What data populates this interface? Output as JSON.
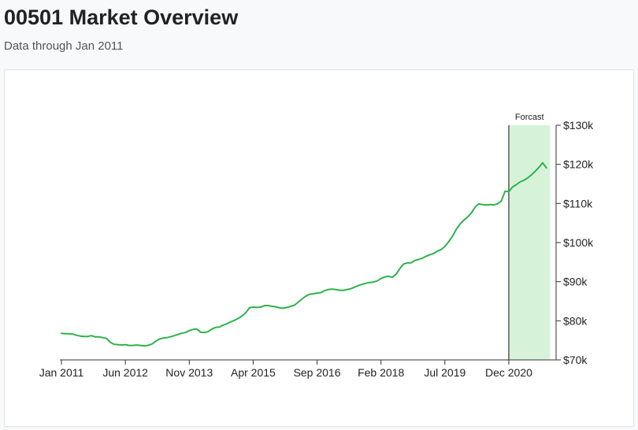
{
  "header": {
    "title": "00501 Market Overview",
    "subtitle": "Data through Jan 2011"
  },
  "colors": {
    "line": "#2db34a",
    "forecast_fill": "#d6f3da",
    "axis": "#333333"
  },
  "chart_data": {
    "type": "line",
    "title": "",
    "xlabel": "",
    "ylabel": "",
    "x_start": "Jan 2011",
    "x_step_months": 1,
    "x_ticks": [
      {
        "label": "Jan 2011",
        "index": 0
      },
      {
        "label": "Jun 2012",
        "index": 17
      },
      {
        "label": "Nov 2013",
        "index": 34
      },
      {
        "label": "Apr 2015",
        "index": 51
      },
      {
        "label": "Sep 2016",
        "index": 68
      },
      {
        "label": "Feb 2018",
        "index": 85
      },
      {
        "label": "Jul 2019",
        "index": 102
      },
      {
        "label": "Dec 2020",
        "index": 119
      }
    ],
    "y_ticks": [
      {
        "label": "$70k",
        "value": 70000
      },
      {
        "label": "$80k",
        "value": 80000
      },
      {
        "label": "$90k",
        "value": 90000
      },
      {
        "label": "$100k",
        "value": 100000
      },
      {
        "label": "$110k",
        "value": 110000
      },
      {
        "label": "$120k",
        "value": 120000
      },
      {
        "label": "$130k",
        "value": 130000
      }
    ],
    "ylim": [
      70000,
      130000
    ],
    "y_axis_side": "right",
    "grid": false,
    "forecast": {
      "label": "Forcast",
      "start_index": 119,
      "end_index": 130
    },
    "series": [
      {
        "values": [
          76800,
          76700,
          76700,
          76600,
          76300,
          76100,
          76000,
          76000,
          76200,
          75900,
          75900,
          75700,
          75500,
          74500,
          74000,
          73900,
          73800,
          73900,
          73700,
          73700,
          73800,
          73700,
          73600,
          73700,
          74000,
          74700,
          75300,
          75600,
          75700,
          75900,
          76200,
          76500,
          76800,
          77000,
          77500,
          77800,
          77900,
          77100,
          77000,
          77200,
          77900,
          78300,
          78400,
          78900,
          79200,
          79700,
          80100,
          80600,
          81200,
          82000,
          83300,
          83500,
          83400,
          83500,
          83900,
          83900,
          83700,
          83600,
          83300,
          83200,
          83400,
          83700,
          84000,
          84800,
          85600,
          86300,
          86800,
          86900,
          87100,
          87200,
          87700,
          88000,
          88100,
          88000,
          87800,
          87800,
          88000,
          88200,
          88600,
          89000,
          89300,
          89600,
          89800,
          89900,
          90200,
          90800,
          91200,
          91400,
          91100,
          91900,
          93300,
          94500,
          94800,
          94800,
          95400,
          95700,
          96000,
          96500,
          96900,
          97200,
          97800,
          98200,
          99000,
          100200,
          101600,
          103300,
          104700,
          105700,
          106500,
          107500,
          109000,
          109900,
          109700,
          109600,
          109700,
          109600,
          109900,
          110600,
          113100,
          113000,
          114200,
          114800,
          115500,
          115900,
          116500,
          117300,
          118200,
          119200,
          120400,
          119100
        ]
      }
    ]
  }
}
